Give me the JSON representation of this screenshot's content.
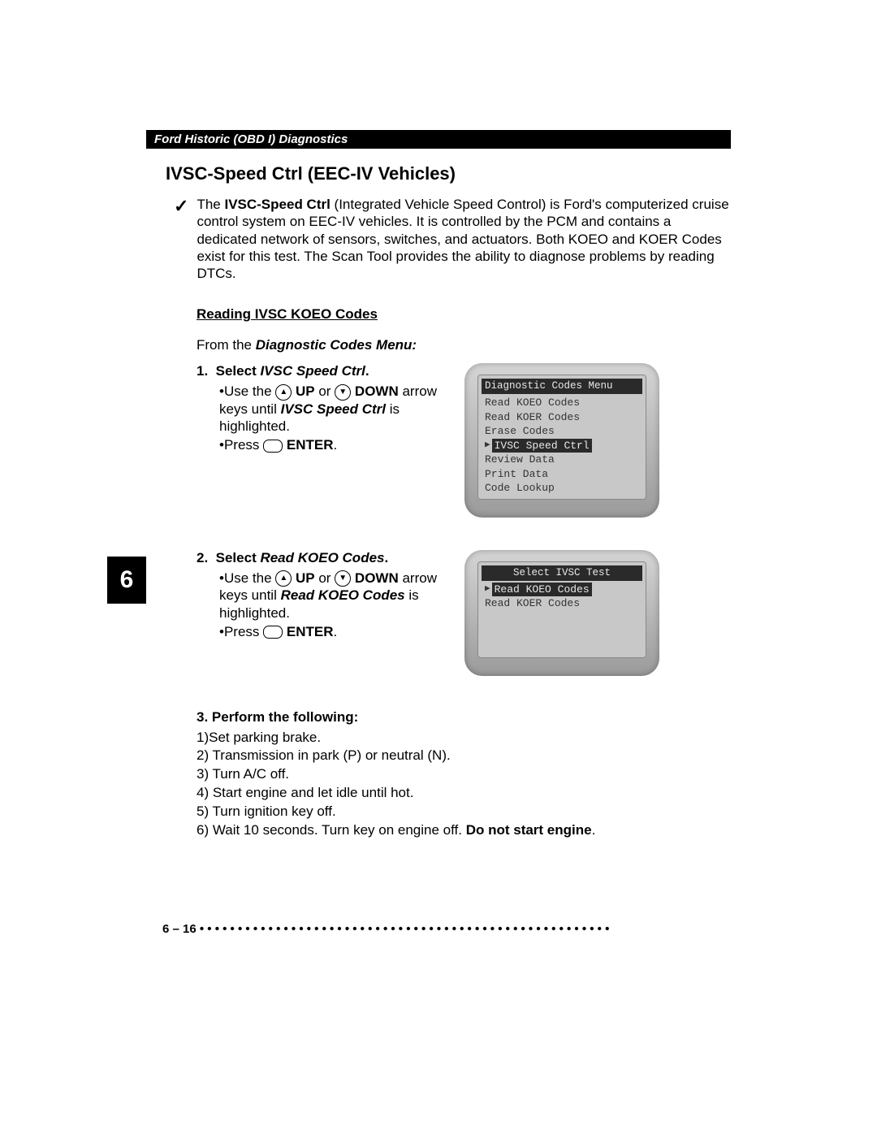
{
  "header": "Ford Historic (OBD I) Diagnostics",
  "section_title": "IVSC-Speed Ctrl (EEC-IV Vehicles)",
  "intro": {
    "lead_bold": "IVSC-Speed Ctrl",
    "prefix": "The ",
    "rest": " (Integrated Vehicle Speed Control) is Ford's computerized cruise control system on EEC-IV vehicles. It is controlled by the PCM and contains a dedicated network of sensors, switches, and actuators. Both KOEO and KOER Codes exist for this test. The Scan Tool provides the ability to diagnose problems by reading DTCs."
  },
  "sub_heading": "Reading IVSC KOEO Codes",
  "from_menu_prefix": "From the ",
  "from_menu_bold": "Diagnostic Codes Menu:",
  "step1": {
    "num": "1.",
    "label_prefix": "Select ",
    "label_italic": "IVSC Speed Ctrl",
    "label_suffix": ".",
    "bullet1_a": "Use the ",
    "bullet1_up": "UP",
    "bullet1_b": " or ",
    "bullet1_down": "DOWN",
    "bullet1_c": " arrow keys until ",
    "bullet1_italic": "IVSC Speed Ctrl",
    "bullet1_d": " is highlighted.",
    "bullet2_a": "Press ",
    "bullet2_enter": "ENTER",
    "bullet2_b": "."
  },
  "screen1": {
    "title": "Diagnostic Codes Menu",
    "lines": [
      "Read KOEO Codes",
      "Read KOER Codes",
      "Erase Codes"
    ],
    "selected": "IVSC Speed Ctrl",
    "lines_after": [
      "Review Data",
      "Print Data",
      "Code Lookup"
    ]
  },
  "step2": {
    "num": "2.",
    "label_prefix": "Select ",
    "label_italic": "Read KOEO Codes",
    "label_suffix": ".",
    "bullet1_a": "Use the ",
    "bullet1_up": "UP",
    "bullet1_b": " or ",
    "bullet1_down": "DOWN",
    "bullet1_c": " arrow keys until ",
    "bullet1_italic": "Read KOEO Codes",
    "bullet1_d": " is highlighted.",
    "bullet2_a": "Press ",
    "bullet2_enter": "ENTER",
    "bullet2_b": "."
  },
  "screen2": {
    "title": "Select IVSC Test",
    "selected": "Read KOEO Codes",
    "lines_after": [
      "Read KOER Codes"
    ]
  },
  "chapter_tab": "6",
  "step3": {
    "head": "3.   Perform the following:",
    "lines": [
      "1)Set parking brake.",
      "2) Transmission in park (P) or neutral (N).",
      "3) Turn A/C off.",
      "4) Start engine and let idle until hot.",
      "5) Turn ignition key off."
    ],
    "line6_a": "6) Wait 10 seconds. Turn key on engine off. ",
    "line6_bold": "Do not start engine",
    "line6_b": "."
  },
  "footer_page": "6 – 16",
  "footer_dots": " • • • • • • • • • • • • • • • • • • • • • • • • • • • • • • • • • • • • • • • • • • • • • • • • • • • • • •"
}
